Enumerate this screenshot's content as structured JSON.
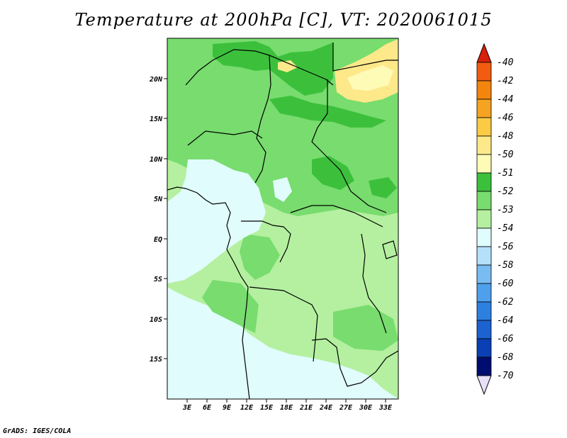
{
  "title": "Temperature at 200hPa [C], VT: 2020061015",
  "credit": "GrADS: IGES/COLA",
  "map": {
    "lat_labels": [
      "20N",
      "15N",
      "10N",
      "5N",
      "EQ",
      "5S",
      "10S",
      "15S"
    ],
    "lon_labels": [
      "3E",
      "6E",
      "9E",
      "12E",
      "15E",
      "18E",
      "21E",
      "24E",
      "27E",
      "30E",
      "33E"
    ]
  },
  "colorbar": {
    "labels": [
      "-40",
      "-42",
      "-44",
      "-46",
      "-48",
      "-50",
      "-51",
      "-52",
      "-53",
      "-54",
      "-56",
      "-58",
      "-60",
      "-62",
      "-64",
      "-66",
      "-68",
      "-70"
    ],
    "colors": [
      "#f02010",
      "#f25c10",
      "#f3850f",
      "#f6a322",
      "#fbcb45",
      "#fde98a",
      "#fefbb7",
      "#3cc03c",
      "#78dc6e",
      "#b4f0a0",
      "#e0fcfc",
      "#b4e0fa",
      "#78bcf2",
      "#4ea0ec",
      "#2d7fe0",
      "#1c62d0",
      "#0a40b4",
      "#000d70"
    ],
    "top_triangle_color": "#d8200a",
    "bottom_triangle_color": "#e8e0f8"
  },
  "palette": {
    "land_dark": "#3cc03c",
    "land_mid": "#78dc6e",
    "land_light": "#b4f0a0",
    "cold": "#e0fcfc",
    "warm": "#fde98a"
  }
}
